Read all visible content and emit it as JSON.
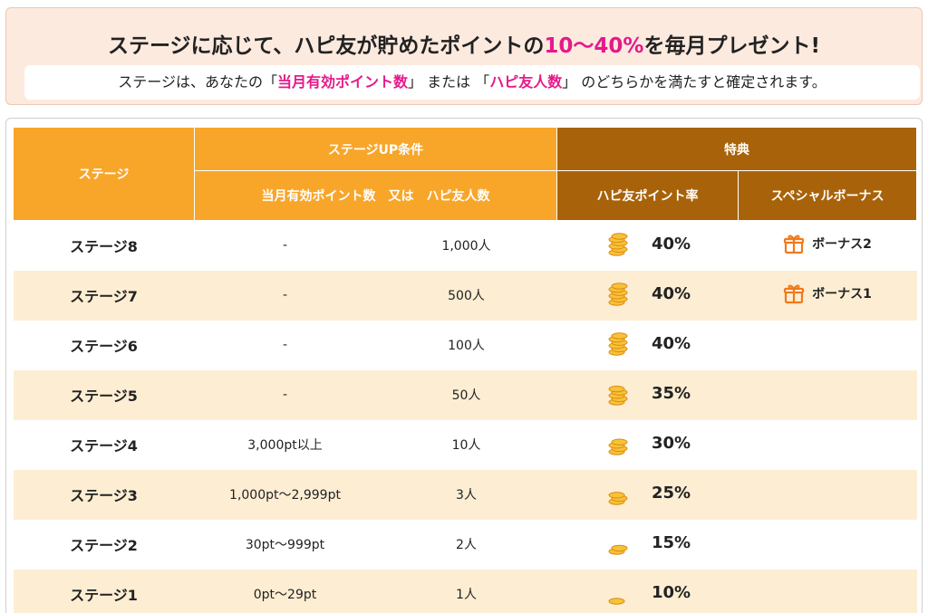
{
  "banner": {
    "title_pre": "ステージに応じて、ハピ友が貯めたポイントの",
    "title_hl": "10〜40%",
    "title_post": "を毎月プレゼント!",
    "sub_pre": "ステージは、あなたの「",
    "sub_hl1": "当月有効ポイント数",
    "sub_mid": "」 または 「",
    "sub_hl2": "ハピ友人数",
    "sub_post": "」 のどちらかを満たすと確定されます。"
  },
  "table": {
    "headers": {
      "stage": "ステージ",
      "condition": "ステージUP条件",
      "condition_sub": "当月有効ポイント数　又は　ハピ友人数",
      "benefit": "特典",
      "rate": "ハピ友ポイント率",
      "bonus": "スペシャルボーナス"
    },
    "rows": [
      {
        "stage": "ステージ8",
        "points": "-",
        "friends": "1,000人",
        "rate": "40%",
        "bonus": "ボーナス2"
      },
      {
        "stage": "ステージ7",
        "points": "-",
        "friends": "500人",
        "rate": "40%",
        "bonus": "ボーナス1"
      },
      {
        "stage": "ステージ6",
        "points": "-",
        "friends": "100人",
        "rate": "40%",
        "bonus": ""
      },
      {
        "stage": "ステージ5",
        "points": "-",
        "friends": "50人",
        "rate": "35%",
        "bonus": ""
      },
      {
        "stage": "ステージ4",
        "points": "3,000pt以上",
        "friends": "10人",
        "rate": "30%",
        "bonus": ""
      },
      {
        "stage": "ステージ3",
        "points": "1,000pt〜2,999pt",
        "friends": "3人",
        "rate": "25%",
        "bonus": ""
      },
      {
        "stage": "ステージ2",
        "points": "30pt〜999pt",
        "friends": "2人",
        "rate": "15%",
        "bonus": ""
      },
      {
        "stage": "ステージ1",
        "points": "0pt〜29pt",
        "friends": "1人",
        "rate": "10%",
        "bonus": ""
      }
    ]
  },
  "icons": {
    "coin": "coin-stack-icon",
    "gift": "gift-icon"
  },
  "colors": {
    "orange": "#f8a62a",
    "brown": "#a8630a",
    "pink": "#e6198a",
    "row_alt": "#fdeed3",
    "banner_bg": "#fdeadf"
  }
}
